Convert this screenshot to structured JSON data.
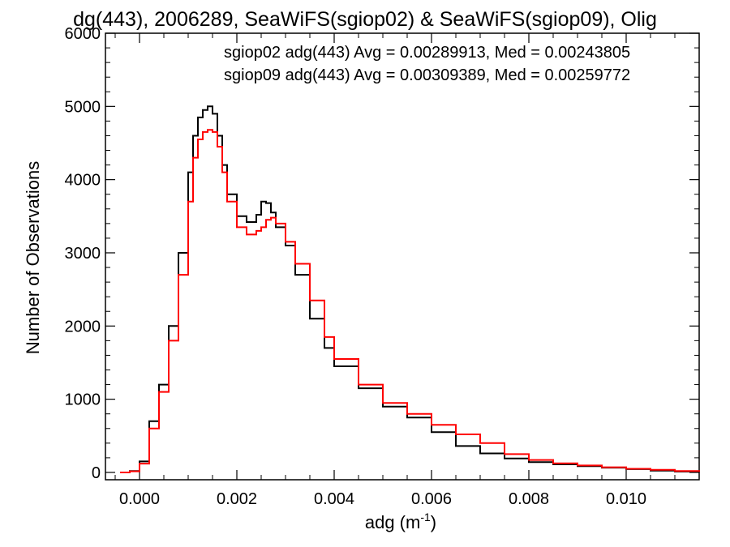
{
  "chart_data": {
    "type": "line",
    "title": "dg(443), 2006289, SeaWiFS(sgiop02) & SeaWiFS(sgiop09), Olig",
    "xlabel_main": "adg (m",
    "xlabel_sup": "-1",
    "xlabel_tail": ")",
    "ylabel": "Number of Observations",
    "xlim": [
      -0.0007,
      0.0115
    ],
    "ylim": [
      -100,
      6000
    ],
    "x_ticks": [
      0.0,
      0.002,
      0.004,
      0.006,
      0.008,
      0.01
    ],
    "x_tick_labels": [
      "0.000",
      "0.002",
      "0.004",
      "0.006",
      "0.008",
      "0.010"
    ],
    "y_ticks": [
      0,
      1000,
      2000,
      3000,
      4000,
      5000,
      6000
    ],
    "y_tick_labels": [
      "0",
      "1000",
      "2000",
      "3000",
      "4000",
      "5000",
      "6000"
    ],
    "grid": false,
    "legend_position": "top-right",
    "series": [
      {
        "name": "sgiop02 adg(443) Avg = 0.00289913, Med = 0.00243805",
        "color": "#000000",
        "x": [
          -0.0004,
          -0.0002,
          0.0,
          0.0002,
          0.0004,
          0.0006,
          0.0008,
          0.001,
          0.0011,
          0.0012,
          0.0013,
          0.0014,
          0.0015,
          0.0016,
          0.0017,
          0.0018,
          0.002,
          0.0022,
          0.0024,
          0.0025,
          0.0026,
          0.0027,
          0.0028,
          0.003,
          0.0032,
          0.0035,
          0.0038,
          0.004,
          0.0045,
          0.005,
          0.0055,
          0.006,
          0.0065,
          0.007,
          0.0075,
          0.008,
          0.0085,
          0.009,
          0.0095,
          0.01,
          0.0105,
          0.011,
          0.0115
        ],
        "y": [
          0,
          20,
          150,
          700,
          1200,
          2000,
          3000,
          4100,
          4600,
          4850,
          4950,
          5000,
          4900,
          4600,
          4200,
          3800,
          3500,
          3420,
          3520,
          3700,
          3680,
          3550,
          3350,
          3100,
          2700,
          2100,
          1700,
          1450,
          1150,
          900,
          750,
          550,
          360,
          260,
          190,
          140,
          110,
          85,
          65,
          45,
          25,
          12,
          5
        ]
      },
      {
        "name": "sgiop09 adg(443) Avg = 0.00309389, Med = 0.00259772",
        "color": "#ff0000",
        "x": [
          -0.0004,
          -0.0002,
          0.0,
          0.0002,
          0.0004,
          0.0006,
          0.0008,
          0.001,
          0.0011,
          0.0012,
          0.0013,
          0.0014,
          0.0015,
          0.0016,
          0.0017,
          0.0018,
          0.002,
          0.0022,
          0.0024,
          0.0025,
          0.0026,
          0.0027,
          0.0028,
          0.003,
          0.0032,
          0.0035,
          0.0038,
          0.004,
          0.0045,
          0.005,
          0.0055,
          0.006,
          0.0065,
          0.007,
          0.0075,
          0.008,
          0.0085,
          0.009,
          0.0095,
          0.01,
          0.0105,
          0.011,
          0.0115
        ],
        "y": [
          0,
          15,
          120,
          600,
          1100,
          1800,
          2700,
          3700,
          4300,
          4550,
          4650,
          4680,
          4650,
          4450,
          4100,
          3700,
          3350,
          3250,
          3300,
          3350,
          3450,
          3480,
          3400,
          3150,
          2850,
          2350,
          1850,
          1550,
          1200,
          950,
          800,
          650,
          520,
          400,
          250,
          170,
          125,
          95,
          70,
          50,
          35,
          20,
          10
        ]
      }
    ]
  }
}
